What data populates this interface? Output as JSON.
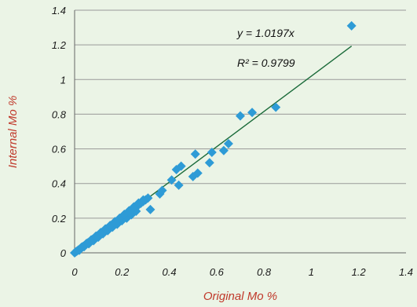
{
  "chart_data": {
    "type": "scatter",
    "title": "",
    "xlabel": "Original Mo %",
    "ylabel": "Internal Mo %",
    "xlim": [
      0,
      1.4
    ],
    "ylim": [
      0,
      1.4
    ],
    "x_ticks": [
      "0",
      "0.2",
      "0.4",
      "0.6",
      "0.8",
      "1",
      "1.2",
      "1.4"
    ],
    "y_ticks": [
      "0",
      "0.2",
      "0.4",
      "0.6",
      "0.8",
      "1",
      "1.2",
      "1.4"
    ],
    "grid": "horizontal",
    "legend": "none",
    "annotations": {
      "equation": "y = 1.0197x",
      "r_squared": "R² = 0.9799"
    },
    "trendline": {
      "slope": 1.0197,
      "x_range": [
        0,
        1.17
      ]
    },
    "colors": {
      "points": "#2e9bd6",
      "trendline": "#1b6b3a",
      "axis_title": "#c0392b",
      "grid": "#999999",
      "background": "#ebf4e6"
    },
    "series": [
      {
        "x": [
          0.0,
          0.005,
          0.01,
          0.015,
          0.02,
          0.025,
          0.03,
          0.035,
          0.04,
          0.045,
          0.05,
          0.055,
          0.06,
          0.065,
          0.07,
          0.075,
          0.08,
          0.085,
          0.09,
          0.095,
          0.1,
          0.105,
          0.11,
          0.115,
          0.12,
          0.125,
          0.13,
          0.135,
          0.14,
          0.145,
          0.15,
          0.155,
          0.16,
          0.165,
          0.17,
          0.175,
          0.18,
          0.185,
          0.19,
          0.2,
          0.21,
          0.22,
          0.23,
          0.24,
          0.25,
          0.26,
          0.27,
          0.28,
          0.29,
          0.3,
          0.31,
          0.02,
          0.04,
          0.06,
          0.08,
          0.1,
          0.12,
          0.14,
          0.16,
          0.18,
          0.2,
          0.22,
          0.24,
          0.26,
          0.03,
          0.05,
          0.07,
          0.09,
          0.11,
          0.13,
          0.15,
          0.17,
          0.19,
          0.21,
          0.23,
          0.25,
          0.27,
          0.29,
          0.32,
          0.36,
          0.37,
          0.41,
          0.43,
          0.44,
          0.45,
          0.5,
          0.51,
          0.52,
          0.57,
          0.58,
          0.63,
          0.65,
          0.7,
          0.75,
          0.85,
          1.17
        ],
        "y": [
          0.0,
          0.005,
          0.01,
          0.016,
          0.02,
          0.026,
          0.03,
          0.036,
          0.04,
          0.046,
          0.05,
          0.057,
          0.061,
          0.066,
          0.071,
          0.077,
          0.081,
          0.087,
          0.091,
          0.097,
          0.101,
          0.107,
          0.112,
          0.117,
          0.122,
          0.128,
          0.132,
          0.138,
          0.142,
          0.148,
          0.152,
          0.158,
          0.163,
          0.168,
          0.173,
          0.178,
          0.183,
          0.189,
          0.193,
          0.204,
          0.214,
          0.225,
          0.235,
          0.245,
          0.255,
          0.266,
          0.276,
          0.286,
          0.296,
          0.306,
          0.316,
          0.015,
          0.035,
          0.052,
          0.07,
          0.09,
          0.11,
          0.128,
          0.148,
          0.165,
          0.185,
          0.2,
          0.22,
          0.24,
          0.033,
          0.054,
          0.075,
          0.096,
          0.117,
          0.138,
          0.158,
          0.18,
          0.2,
          0.222,
          0.243,
          0.265,
          0.287,
          0.305,
          0.25,
          0.34,
          0.36,
          0.42,
          0.48,
          0.39,
          0.5,
          0.44,
          0.57,
          0.46,
          0.52,
          0.58,
          0.59,
          0.63,
          0.79,
          0.81,
          0.84,
          1.31
        ]
      }
    ]
  }
}
